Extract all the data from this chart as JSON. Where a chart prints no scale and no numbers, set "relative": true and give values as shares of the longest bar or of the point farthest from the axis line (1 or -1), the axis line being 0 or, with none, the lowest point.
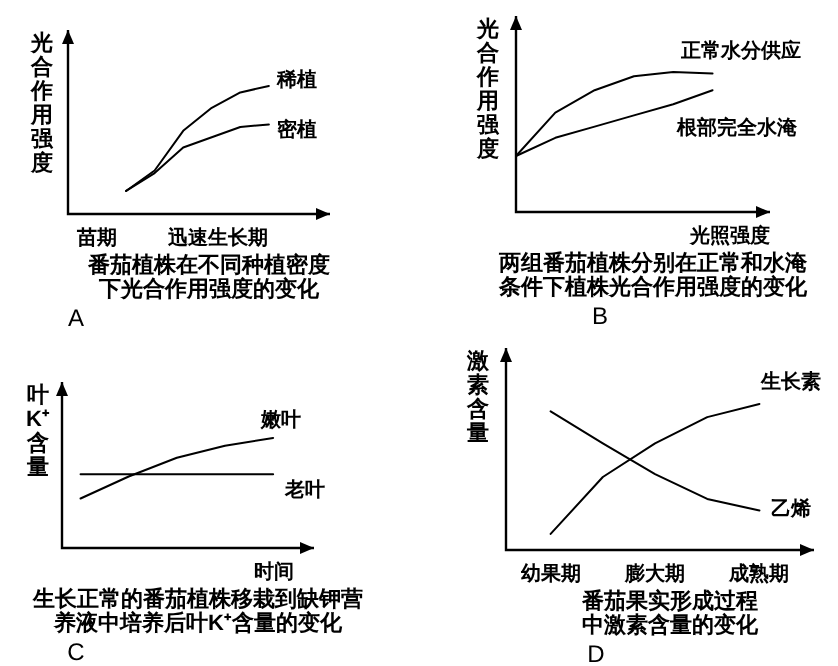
{
  "chart_data": [
    {
      "type": "line",
      "relative": true,
      "title": "番茄植株在不同种植密度下光合作用强度的变化",
      "ylabel": "光合作用强度",
      "categories": [
        null,
        null,
        null,
        null,
        null,
        null
      ],
      "series": [
        {
          "name": "稀植",
          "color": "#000000",
          "values": [
            0.18,
            0.34,
            0.65,
            0.83,
            0.95,
            1.0
          ]
        },
        {
          "name": "密植",
          "color": "#000000",
          "values": [
            0.18,
            0.32,
            0.52,
            0.6,
            0.68,
            0.7
          ]
        }
      ],
      "annotations": [
        "苗期",
        "迅速生长期",
        "A"
      ]
    },
    {
      "type": "line",
      "relative": true,
      "title": "两组番茄植株分别在正常和水淹条件下植株光合作用强度的变化",
      "ylabel": "光合作用强度",
      "xlabel": "光照强度",
      "categories": [
        null,
        null,
        null,
        null,
        null,
        null
      ],
      "series": [
        {
          "name": "正常水分供应",
          "color": "#000000",
          "values": [
            0.4,
            0.71,
            0.87,
            0.97,
            1.0,
            0.99
          ]
        },
        {
          "name": "根部完全水淹",
          "color": "#000000",
          "values": [
            0.4,
            0.53,
            0.61,
            0.69,
            0.77,
            0.87
          ]
        }
      ],
      "annotations": [
        "B"
      ]
    },
    {
      "type": "line",
      "relative": true,
      "title": "生长正常的番茄植株移栽到缺钾营养液中培养后叶K⁺含量的变化",
      "ylabel": "叶K⁺含量",
      "xlabel": "时间",
      "categories": [
        null,
        null,
        null,
        null,
        null
      ],
      "series": [
        {
          "name": "嫩叶",
          "color": "#000000",
          "values": [
            0.45,
            0.65,
            0.82,
            0.93,
            1.0
          ]
        },
        {
          "name": "老叶",
          "color": "#000000",
          "values": [
            0.67,
            0.67,
            0.67,
            0.67,
            0.67
          ]
        }
      ],
      "annotations": [
        "C"
      ]
    },
    {
      "type": "line",
      "relative": true,
      "title": "番茄果实形成过程中激素含量的变化",
      "ylabel": "激素含量",
      "categories": [
        "幼果期",
        null,
        "膨大期",
        null,
        "成熟期"
      ],
      "series": [
        {
          "name": "生长素",
          "color": "#000000",
          "values": [
            0.11,
            0.5,
            0.73,
            0.91,
            1.0
          ]
        },
        {
          "name": "乙烯",
          "color": "#000000",
          "values": [
            0.95,
            0.73,
            0.52,
            0.35,
            0.27
          ]
        }
      ],
      "annotations": [
        "D"
      ]
    }
  ]
}
